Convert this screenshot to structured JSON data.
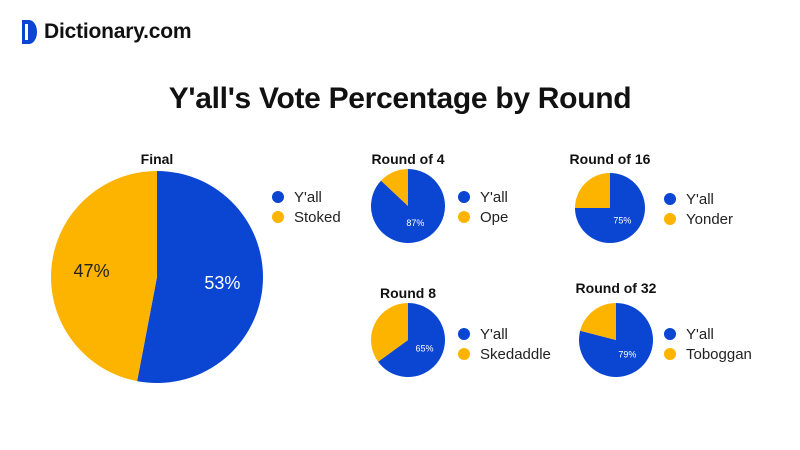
{
  "brand": {
    "name": "Dictionary.com",
    "accent": "#0a46d2"
  },
  "title": "Y'all's Vote Percentage by Round",
  "colors": {
    "yall": "#0a46d2",
    "opponent": "#fdb400"
  },
  "chart_data": [
    {
      "type": "pie",
      "title": "Final",
      "labels": [
        "Y'all",
        "Stoked"
      ],
      "values": [
        53,
        47
      ],
      "value_labels": [
        "53%",
        "47%"
      ],
      "legend": "right"
    },
    {
      "type": "pie",
      "title": "Round of 4",
      "labels": [
        "Y'all",
        "Ope"
      ],
      "values": [
        87,
        13
      ],
      "value_labels": [
        "87%",
        ""
      ],
      "legend": "right"
    },
    {
      "type": "pie",
      "title": "Round of 16",
      "labels": [
        "Y'all",
        "Yonder"
      ],
      "values": [
        75,
        25
      ],
      "value_labels": [
        "75%",
        ""
      ],
      "legend": "right"
    },
    {
      "type": "pie",
      "title": "Round 8",
      "labels": [
        "Y'all",
        "Skedaddle"
      ],
      "values": [
        65,
        35
      ],
      "value_labels": [
        "65%",
        ""
      ],
      "legend": "right"
    },
    {
      "type": "pie",
      "title": "Round of 32",
      "labels": [
        "Y'all",
        "Toboggan"
      ],
      "values": [
        79,
        21
      ],
      "value_labels": [
        "79%",
        ""
      ],
      "legend": "right"
    }
  ]
}
